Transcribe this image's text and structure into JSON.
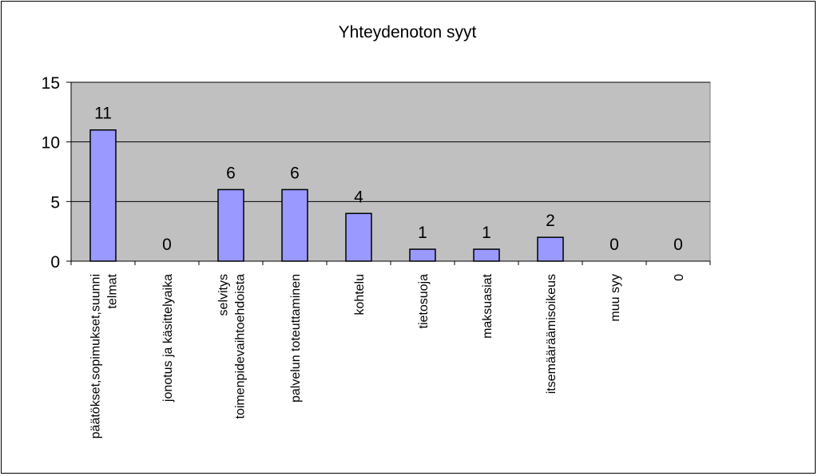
{
  "chart_data": {
    "type": "bar",
    "title": "Yhteydenoton syyt",
    "categories": [
      "päätökset,sopimukset,suunni\ntelmat",
      "jonotus ja käsittelyaika",
      "selvitys\ntoimenpidevaihtoehdoista",
      "palvelun toteuttaminen",
      "kohtelu",
      "tietosuoja",
      "maksuasiat",
      "itsemääräämisoikeus",
      "muu syy",
      "0"
    ],
    "values": [
      11,
      0,
      6,
      6,
      4,
      1,
      1,
      2,
      0,
      0
    ],
    "ylim": [
      0,
      15
    ],
    "yticks": [
      0,
      5,
      10,
      15
    ],
    "grid": true,
    "legend": "none",
    "colors": {
      "plot_background": "#c0c0c0",
      "bar_fill": "#9999ff",
      "bar_stroke": "#000000",
      "gridline": "#000000"
    }
  }
}
